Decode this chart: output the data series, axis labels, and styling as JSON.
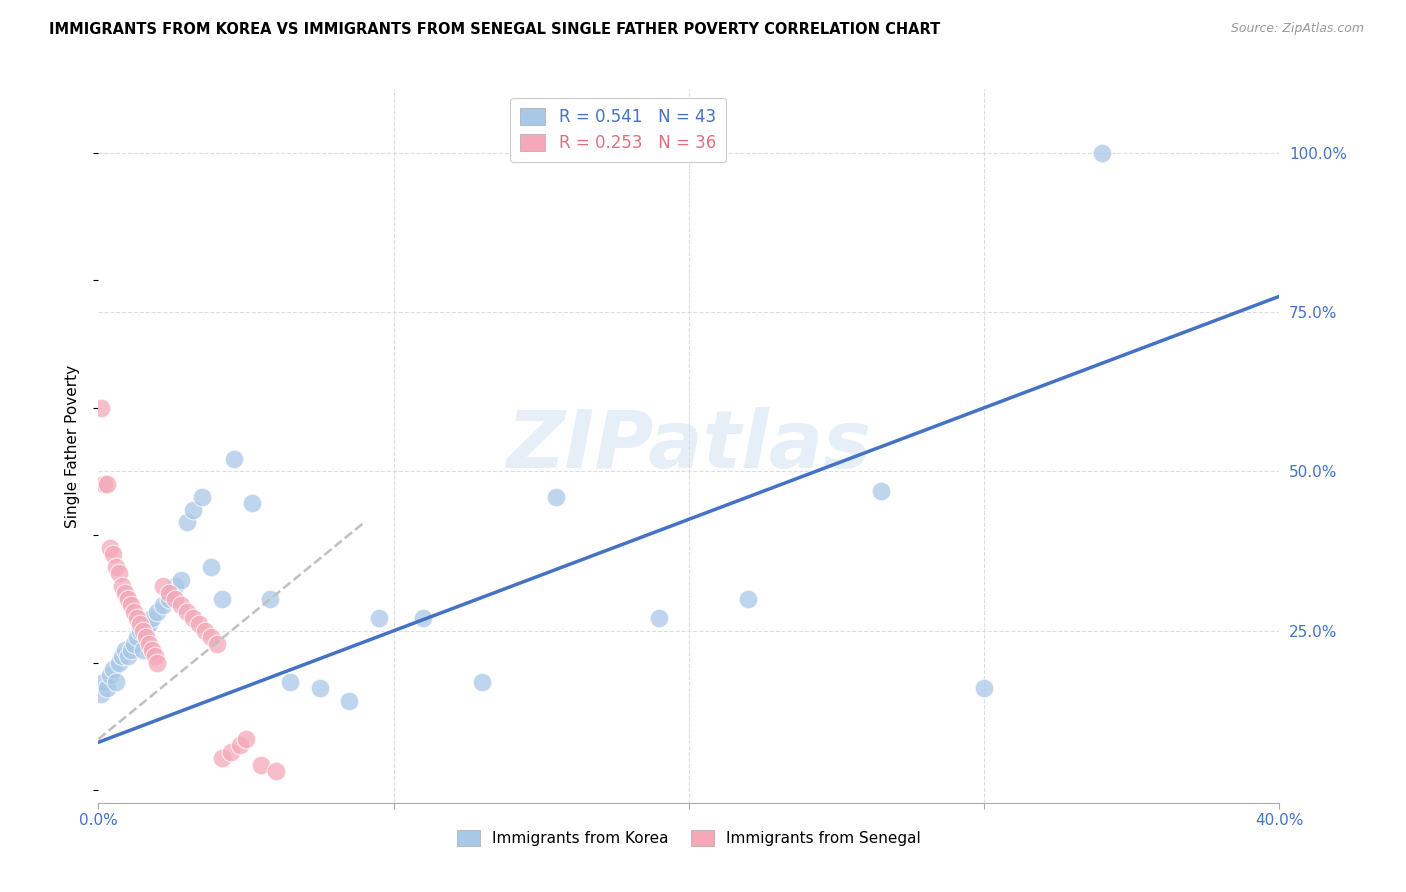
{
  "title": "IMMIGRANTS FROM KOREA VS IMMIGRANTS FROM SENEGAL SINGLE FATHER POVERTY CORRELATION CHART",
  "source": "Source: ZipAtlas.com",
  "ylabel": "Single Father Poverty",
  "xlim": [
    0.0,
    0.4
  ],
  "ylim": [
    -0.02,
    1.1
  ],
  "korea_color": "#a8c8e8",
  "senegal_color": "#f4a8b8",
  "korea_line_color": "#4472C4",
  "senegal_line_color": "#c0c0c0",
  "grid_color": "#dddddd",
  "watermark": "ZIPatlas",
  "korea_R": "0.541",
  "korea_N": "43",
  "senegal_R": "0.253",
  "senegal_N": "36",
  "legend_label_korea": "R = 0.541   N = 43",
  "legend_label_senegal": "R = 0.253   N = 36",
  "bottom_legend_korea": "Immigrants from Korea",
  "bottom_legend_senegal": "Immigrants from Senegal",
  "korea_x": [
    0.001,
    0.002,
    0.003,
    0.004,
    0.005,
    0.006,
    0.007,
    0.008,
    0.009,
    0.01,
    0.011,
    0.012,
    0.013,
    0.014,
    0.015,
    0.016,
    0.017,
    0.018,
    0.02,
    0.022,
    0.024,
    0.026,
    0.028,
    0.03,
    0.032,
    0.035,
    0.038,
    0.042,
    0.046,
    0.052,
    0.058,
    0.065,
    0.075,
    0.085,
    0.095,
    0.11,
    0.13,
    0.155,
    0.19,
    0.22,
    0.265,
    0.3,
    0.34
  ],
  "korea_y": [
    0.15,
    0.17,
    0.16,
    0.18,
    0.19,
    0.17,
    0.2,
    0.21,
    0.22,
    0.21,
    0.22,
    0.23,
    0.24,
    0.25,
    0.22,
    0.25,
    0.26,
    0.27,
    0.28,
    0.29,
    0.3,
    0.32,
    0.33,
    0.42,
    0.44,
    0.46,
    0.35,
    0.3,
    0.52,
    0.45,
    0.3,
    0.17,
    0.16,
    0.14,
    0.27,
    0.27,
    0.17,
    0.46,
    0.27,
    0.3,
    0.47,
    0.16,
    1.0
  ],
  "senegal_x": [
    0.001,
    0.002,
    0.003,
    0.004,
    0.005,
    0.006,
    0.007,
    0.008,
    0.009,
    0.01,
    0.011,
    0.012,
    0.013,
    0.014,
    0.015,
    0.016,
    0.017,
    0.018,
    0.019,
    0.02,
    0.022,
    0.024,
    0.026,
    0.028,
    0.03,
    0.032,
    0.034,
    0.036,
    0.038,
    0.04,
    0.042,
    0.045,
    0.048,
    0.05,
    0.055,
    0.06
  ],
  "senegal_y": [
    0.6,
    0.48,
    0.48,
    0.38,
    0.37,
    0.35,
    0.34,
    0.32,
    0.31,
    0.3,
    0.29,
    0.28,
    0.27,
    0.26,
    0.25,
    0.24,
    0.23,
    0.22,
    0.21,
    0.2,
    0.32,
    0.31,
    0.3,
    0.29,
    0.28,
    0.27,
    0.26,
    0.25,
    0.24,
    0.23,
    0.05,
    0.06,
    0.07,
    0.08,
    0.04,
    0.03
  ],
  "korea_trend_x0": 0.0,
  "korea_trend_x1": 0.4,
  "korea_trend_y0": 0.075,
  "korea_trend_y1": 0.775,
  "senegal_trend_x0": 0.0,
  "senegal_trend_x1": 0.09,
  "senegal_trend_y0": 0.08,
  "senegal_trend_y1": 0.42
}
